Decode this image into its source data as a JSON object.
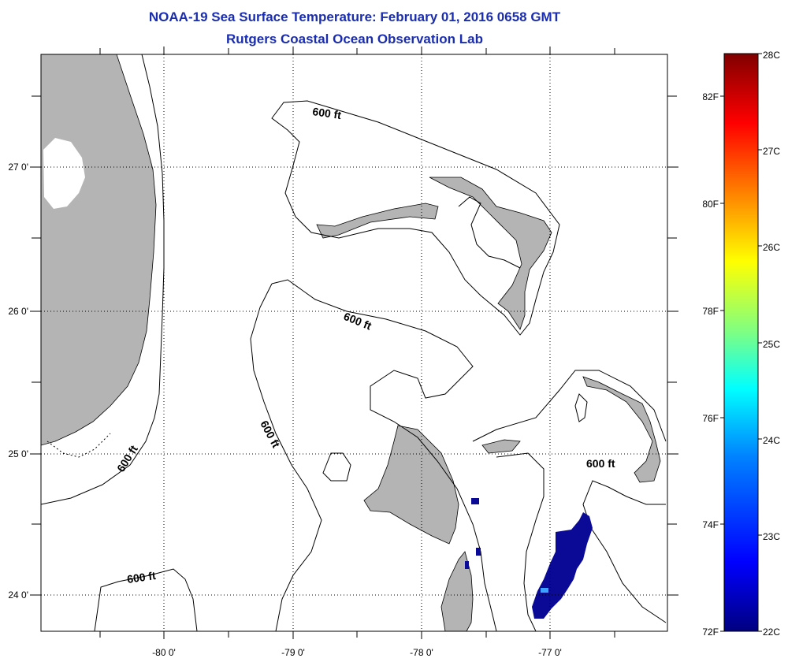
{
  "title": "NOAA-19 Sea Surface Temperature:  February 01, 2016 0658 GMT",
  "subtitle": "Rutgers Coastal Ocean Observation Lab",
  "map": {
    "lon_range": [
      -80.95,
      -76.05
    ],
    "lat_range": [
      23.72,
      27.83
    ],
    "lon_ticks": [
      {
        "value": -80,
        "label": "-80 0'"
      },
      {
        "value": -79,
        "label": "-79 0'"
      },
      {
        "value": -78,
        "label": "-78 0'"
      },
      {
        "value": -77,
        "label": "-77 0'"
      }
    ],
    "lat_ticks": [
      {
        "value": 27,
        "label": "27 0'"
      },
      {
        "value": 26,
        "label": "26 0'"
      },
      {
        "value": 25,
        "label": "25 0'"
      },
      {
        "value": 24,
        "label": "24 0'"
      }
    ],
    "grid": "dotted",
    "contour_labels": [
      "600 ft",
      "600 ft",
      "600 ft",
      "600 ft",
      "600 ft",
      "600 ft"
    ],
    "land_color": "#b4b4b4",
    "sst_color": "#0a0a96"
  },
  "colorbar": {
    "celsius": [
      "28C",
      "27C",
      "26C",
      "25C",
      "24C",
      "23C",
      "22C"
    ],
    "fahrenheit": [
      "82F",
      "80F",
      "78F",
      "76F",
      "74F",
      "72F"
    ],
    "celsius_range": [
      22,
      28
    ],
    "colors": [
      "#000080",
      "#0000ff",
      "#0080ff",
      "#00ffff",
      "#80ff80",
      "#ffff00",
      "#ff8000",
      "#ff0000",
      "#800000"
    ]
  }
}
